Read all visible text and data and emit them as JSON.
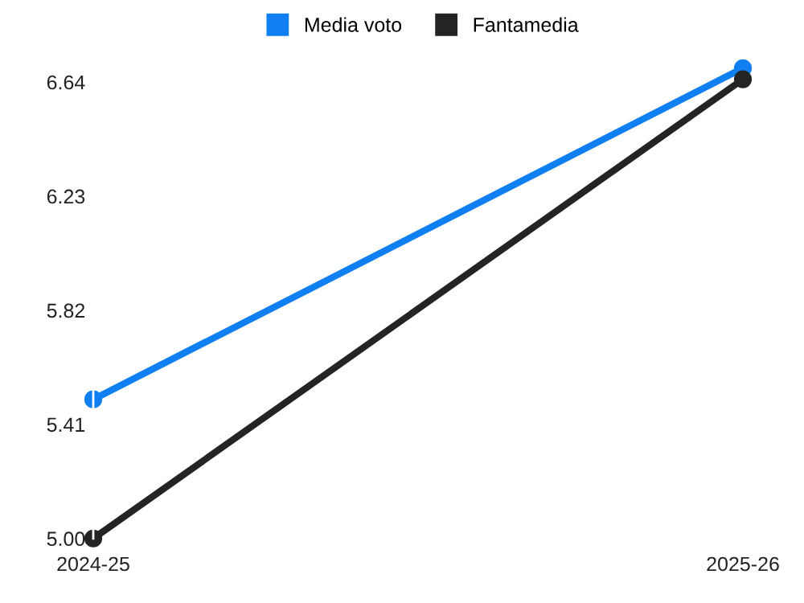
{
  "chart_data": {
    "type": "line",
    "categories": [
      "2024-25",
      "2025-26"
    ],
    "series": [
      {
        "name": "Media voto",
        "color": "#0f7ff2",
        "values": [
          5.5,
          6.69
        ]
      },
      {
        "name": "Fantamedia",
        "color": "#222426",
        "values": [
          5.0,
          6.65
        ]
      }
    ],
    "ylim": [
      5.0,
      6.69
    ],
    "yticks": [
      {
        "value": 5.0,
        "label": "5.00"
      },
      5.41,
      5.82,
      6.23,
      6.64
    ],
    "grid": false,
    "legend": "top",
    "marker": "circle",
    "line_style": "solid"
  }
}
